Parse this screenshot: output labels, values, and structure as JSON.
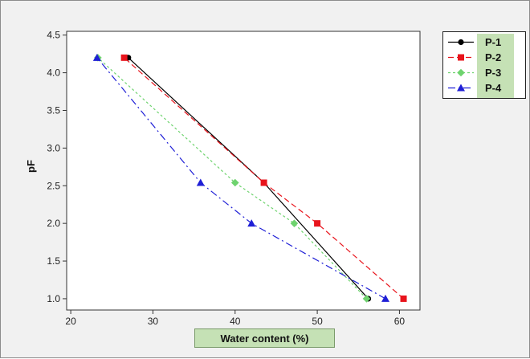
{
  "chart_data": {
    "type": "line",
    "title": "",
    "xlabel": "Water content (%)",
    "ylabel": "pF",
    "xlim": [
      19.5,
      62.5
    ],
    "ylim": [
      0.85,
      4.55
    ],
    "xticks": [
      20,
      30,
      40,
      50,
      60
    ],
    "yticks": [
      1.0,
      1.5,
      2.0,
      2.5,
      3.0,
      3.5,
      4.0,
      4.5
    ],
    "grid": false,
    "legend_position": "right, outside plot",
    "series": [
      {
        "name": "P-1",
        "color": "#000000",
        "marker": "circle",
        "dash": "solid",
        "points": [
          [
            56.2,
            1.0
          ],
          [
            43.5,
            2.54
          ],
          [
            27.0,
            4.2
          ]
        ]
      },
      {
        "name": "P-2",
        "color": "#e8141c",
        "marker": "square",
        "dash": "dashed",
        "points": [
          [
            60.5,
            1.0
          ],
          [
            50.0,
            2.0
          ],
          [
            43.5,
            2.54
          ],
          [
            26.5,
            4.2
          ]
        ]
      },
      {
        "name": "P-3",
        "color": "#6ed36e",
        "marker": "diamond",
        "dash": "dotted",
        "points": [
          [
            56.0,
            1.0
          ],
          [
            47.2,
            2.0
          ],
          [
            40.0,
            2.54
          ],
          [
            23.3,
            4.2
          ]
        ]
      },
      {
        "name": "P-4",
        "color": "#1f1fd6",
        "marker": "triangle",
        "dash": "dashdot",
        "points": [
          [
            58.3,
            1.0
          ],
          [
            42.0,
            2.0
          ],
          [
            35.8,
            2.54
          ],
          [
            23.2,
            4.2
          ]
        ]
      }
    ]
  }
}
